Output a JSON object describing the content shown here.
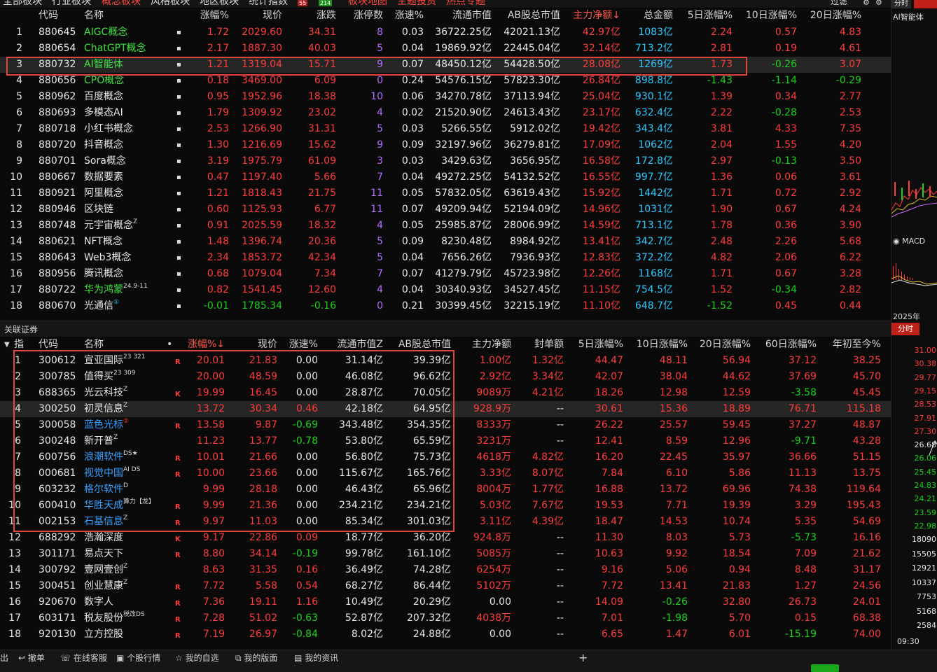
{
  "tabs": [
    {
      "label": "全部板块",
      "active": false
    },
    {
      "label": "行业板块",
      "active": false
    },
    {
      "label": "概念板块",
      "active": true
    },
    {
      "label": "风格板块",
      "active": false
    },
    {
      "label": "地区板块",
      "active": false
    },
    {
      "label": "统计指数",
      "active": false
    },
    {
      "label": "板块地图",
      "active": true
    },
    {
      "label": "主题投资",
      "active": true
    },
    {
      "label": "热点专题",
      "active": true
    }
  ],
  "tab_badges": {
    "up": "55",
    "down": "214"
  },
  "top_right": {
    "filter_label": "过滤",
    "minute_tab": "分时"
  },
  "top_headers": [
    "代码",
    "名称",
    "涨幅%",
    "现价",
    "涨跌",
    "涨停数",
    "涨速%",
    "流通市值",
    "AB股总市值",
    "主力净额↓",
    "总金额",
    "5日涨幅%",
    "10日涨幅%",
    "20日涨幅%"
  ],
  "top_rows": [
    {
      "n": "1",
      "code": "880645",
      "name": "AIGC概念",
      "sup": "",
      "pct": "1.72",
      "price": "2029.60",
      "chg": "34.31",
      "limit": "8",
      "speed": "0.03",
      "float": "36722.25亿",
      "total": "42021.13亿",
      "main": "42.97亿",
      "amount": "1083亿",
      "d5": "2.24",
      "d10": "0.57",
      "d20": "4.83"
    },
    {
      "n": "2",
      "code": "880654",
      "name": "ChatGPT概念",
      "sup": "",
      "pct": "2.17",
      "price": "1887.30",
      "chg": "40.03",
      "limit": "5",
      "speed": "0.04",
      "float": "19869.92亿",
      "total": "22445.04亿",
      "main": "32.14亿",
      "amount": "713.2亿",
      "d5": "2.81",
      "d10": "0.19",
      "d20": "4.61"
    },
    {
      "n": "3",
      "code": "880732",
      "name": "AI智能体",
      "sup": "",
      "pct": "1.21",
      "price": "1319.04",
      "chg": "15.71",
      "limit": "9",
      "speed": "0.07",
      "float": "48450.12亿",
      "total": "54428.50亿",
      "main": "28.08亿",
      "amount": "1269亿",
      "d5": "1.73",
      "d10": "-0.26",
      "d20": "3.07"
    },
    {
      "n": "4",
      "code": "880656",
      "name": "CPO概念",
      "sup": "",
      "pct": "0.18",
      "price": "3469.00",
      "chg": "6.09",
      "limit": "0",
      "speed": "0.24",
      "float": "54576.15亿",
      "total": "57823.30亿",
      "main": "26.84亿",
      "amount": "898.8亿",
      "d5": "-1.43",
      "d10": "-1.14",
      "d20": "-0.29"
    },
    {
      "n": "5",
      "code": "880962",
      "name": "百度概念",
      "sup": "",
      "pct": "0.95",
      "price": "1952.96",
      "chg": "18.38",
      "limit": "10",
      "speed": "0.06",
      "float": "34270.78亿",
      "total": "37113.94亿",
      "main": "25.04亿",
      "amount": "930.1亿",
      "d5": "1.39",
      "d10": "0.34",
      "d20": "2.77"
    },
    {
      "n": "6",
      "code": "880693",
      "name": "多模态AI",
      "sup": "",
      "pct": "1.79",
      "price": "1309.92",
      "chg": "23.02",
      "limit": "4",
      "speed": "0.02",
      "float": "21520.90亿",
      "total": "24613.43亿",
      "main": "23.17亿",
      "amount": "632.4亿",
      "d5": "2.22",
      "d10": "-0.28",
      "d20": "2.53"
    },
    {
      "n": "7",
      "code": "880718",
      "name": "小红书概念",
      "sup": "",
      "pct": "2.53",
      "price": "1266.90",
      "chg": "31.31",
      "limit": "5",
      "speed": "0.03",
      "float": "5266.55亿",
      "total": "5912.02亿",
      "main": "19.42亿",
      "amount": "343.4亿",
      "d5": "3.81",
      "d10": "4.33",
      "d20": "7.35"
    },
    {
      "n": "8",
      "code": "880720",
      "name": "抖音概念",
      "sup": "",
      "pct": "1.30",
      "price": "1216.69",
      "chg": "15.62",
      "limit": "9",
      "speed": "0.09",
      "float": "32197.96亿",
      "total": "36279.81亿",
      "main": "17.09亿",
      "amount": "1062亿",
      "d5": "2.04",
      "d10": "1.55",
      "d20": "4.20"
    },
    {
      "n": "9",
      "code": "880701",
      "name": "Sora概念",
      "sup": "",
      "pct": "3.19",
      "price": "1975.79",
      "chg": "61.09",
      "limit": "3",
      "speed": "0.03",
      "float": "3429.63亿",
      "total": "3656.95亿",
      "main": "16.58亿",
      "amount": "172.8亿",
      "d5": "2.97",
      "d10": "-0.13",
      "d20": "3.50"
    },
    {
      "n": "10",
      "code": "880667",
      "name": "数据要素",
      "sup": "",
      "pct": "0.47",
      "price": "1197.40",
      "chg": "5.66",
      "limit": "7",
      "speed": "0.04",
      "float": "49272.25亿",
      "total": "54132.52亿",
      "main": "16.55亿",
      "amount": "997.7亿",
      "d5": "1.36",
      "d10": "0.06",
      "d20": "3.61"
    },
    {
      "n": "11",
      "code": "880921",
      "name": "阿里概念",
      "sup": "",
      "pct": "1.21",
      "price": "1818.43",
      "chg": "21.75",
      "limit": "11",
      "speed": "0.05",
      "float": "57832.05亿",
      "total": "63619.43亿",
      "main": "15.92亿",
      "amount": "1442亿",
      "d5": "1.71",
      "d10": "0.72",
      "d20": "2.92"
    },
    {
      "n": "12",
      "code": "880946",
      "name": "区块链",
      "sup": "",
      "pct": "0.60",
      "price": "1125.93",
      "chg": "6.77",
      "limit": "11",
      "speed": "0.07",
      "float": "49209.94亿",
      "total": "52194.09亿",
      "main": "14.96亿",
      "amount": "1031亿",
      "d5": "1.90",
      "d10": "0.67",
      "d20": "4.24"
    },
    {
      "n": "13",
      "code": "880748",
      "name": "元宇宙概念",
      "sup": "Z",
      "pct": "0.91",
      "price": "2025.59",
      "chg": "18.32",
      "limit": "4",
      "speed": "0.05",
      "float": "25985.87亿",
      "total": "28006.99亿",
      "main": "14.59亿",
      "amount": "713.1亿",
      "d5": "1.78",
      "d10": "0.36",
      "d20": "3.90"
    },
    {
      "n": "14",
      "code": "880621",
      "name": "NFT概念",
      "sup": "",
      "pct": "1.48",
      "price": "1396.74",
      "chg": "20.36",
      "limit": "5",
      "speed": "0.09",
      "float": "8230.48亿",
      "total": "8984.92亿",
      "main": "13.41亿",
      "amount": "342.7亿",
      "d5": "2.48",
      "d10": "2.26",
      "d20": "5.68"
    },
    {
      "n": "15",
      "code": "880643",
      "name": "Web3概念",
      "sup": "",
      "pct": "2.34",
      "price": "1853.72",
      "chg": "42.34",
      "limit": "5",
      "speed": "0.04",
      "float": "7656.26亿",
      "total": "7936.93亿",
      "main": "12.83亿",
      "amount": "372.2亿",
      "d5": "4.82",
      "d10": "2.06",
      "d20": "6.22"
    },
    {
      "n": "16",
      "code": "880956",
      "name": "腾讯概念",
      "sup": "",
      "pct": "0.68",
      "price": "1079.04",
      "chg": "7.34",
      "limit": "7",
      "speed": "0.07",
      "float": "41279.79亿",
      "total": "45723.98亿",
      "main": "12.26亿",
      "amount": "1168亿",
      "d5": "1.71",
      "d10": "0.67",
      "d20": "3.28"
    },
    {
      "n": "17",
      "code": "880722",
      "name": "华为鸿蒙",
      "sup": "24.9-11",
      "pct": "0.82",
      "price": "1541.45",
      "chg": "12.60",
      "limit": "4",
      "speed": "0.04",
      "float": "30340.93亿",
      "total": "34527.45亿",
      "main": "11.15亿",
      "amount": "754.5亿",
      "d5": "1.52",
      "d10": "-0.34",
      "d20": "2.82"
    },
    {
      "n": "18",
      "code": "880670",
      "name": "光通信",
      "sup": "①",
      "pct": "-0.01",
      "price": "1785.34",
      "chg": "-0.16",
      "limit": "0",
      "speed": "0.21",
      "float": "30399.45亿",
      "total": "32215.19亿",
      "main": "11.10亿",
      "amount": "648.7亿",
      "d5": "-1.52",
      "d10": "0.45",
      "d20": "0.44"
    }
  ],
  "bottom_panel_title": "关联证券",
  "bottom_headers": [
    "指",
    "代码",
    "名称",
    "•",
    "涨幅%↓",
    "现价",
    "涨速%",
    "流通市值Z",
    "AB股总市值",
    "主力净额",
    "封单额",
    "5日涨幅%",
    "10日涨幅%",
    "20日涨幅%",
    "60日涨幅%",
    "年初至今%"
  ],
  "bottom_rows": [
    {
      "n": "1",
      "code": "300612",
      "name": "宣亚国际",
      "sup": "23 321",
      "mark": "R",
      "pct": "20.01",
      "price": "21.83",
      "speed": "0.00",
      "float": "31.14亿",
      "total": "39.39亿",
      "main": "1.00亿",
      "seal": "1.32亿",
      "d5": "44.47",
      "d10": "48.11",
      "d20": "56.94",
      "d60": "37.12",
      "ytd": "38.25"
    },
    {
      "n": "2",
      "code": "300785",
      "name": "值得买",
      "sup": "23 309",
      "mark": "",
      "pct": "20.00",
      "price": "48.59",
      "speed": "0.00",
      "float": "46.08亿",
      "total": "96.62亿",
      "main": "2.92亿",
      "seal": "3.34亿",
      "d5": "42.07",
      "d10": "38.04",
      "d20": "44.62",
      "d60": "37.69",
      "ytd": "45.70"
    },
    {
      "n": "3",
      "code": "688365",
      "name": "光云科技",
      "sup": "Z",
      "mark": "K",
      "pct": "19.99",
      "price": "16.45",
      "speed": "0.00",
      "float": "28.87亿",
      "total": "70.05亿",
      "main": "9089万",
      "seal": "4.21亿",
      "d5": "18.26",
      "d10": "12.98",
      "d20": "12.59",
      "d60": "-3.58",
      "ytd": "45.45"
    },
    {
      "n": "4",
      "code": "300250",
      "name": "初灵信息",
      "sup": "Z",
      "mark": "",
      "pct": "13.72",
      "price": "30.34",
      "speed": "0.46",
      "float": "42.18亿",
      "total": "64.95亿",
      "main": "928.9万",
      "seal": "--",
      "d5": "30.61",
      "d10": "15.36",
      "d20": "18.89",
      "d60": "76.71",
      "ytd": "115.18"
    },
    {
      "n": "5",
      "code": "300058",
      "name": "蓝色光标",
      "sup": "②",
      "mark": "R",
      "pct": "13.58",
      "price": "9.87",
      "speed": "-0.69",
      "float": "343.48亿",
      "total": "354.35亿",
      "main": "8333万",
      "seal": "--",
      "d5": "26.22",
      "d10": "25.57",
      "d20": "59.45",
      "d60": "37.27",
      "ytd": "48.87"
    },
    {
      "n": "6",
      "code": "300248",
      "name": "新开普",
      "sup": "Z",
      "mark": "",
      "pct": "11.23",
      "price": "13.77",
      "speed": "-0.78",
      "float": "53.80亿",
      "total": "65.59亿",
      "main": "3231万",
      "seal": "--",
      "d5": "12.41",
      "d10": "8.59",
      "d20": "12.96",
      "d60": "-9.71",
      "ytd": "43.28"
    },
    {
      "n": "7",
      "code": "600756",
      "name": "浪潮软件",
      "sup": "DS★",
      "mark": "R",
      "pct": "10.01",
      "price": "21.66",
      "speed": "0.00",
      "float": "56.80亿",
      "total": "75.73亿",
      "main": "4618万",
      "seal": "4.82亿",
      "d5": "16.20",
      "d10": "22.45",
      "d20": "35.97",
      "d60": "36.66",
      "ytd": "51.15"
    },
    {
      "n": "8",
      "code": "000681",
      "name": "视觉中国",
      "sup": "AI DS",
      "mark": "R",
      "pct": "10.00",
      "price": "23.66",
      "speed": "0.00",
      "float": "115.67亿",
      "total": "165.76亿",
      "main": "3.33亿",
      "seal": "8.07亿",
      "d5": "7.84",
      "d10": "6.10",
      "d20": "5.86",
      "d60": "11.13",
      "ytd": "13.75"
    },
    {
      "n": "9",
      "code": "603232",
      "name": "格尔软件",
      "sup": "D",
      "mark": "",
      "pct": "9.99",
      "price": "28.18",
      "speed": "0.00",
      "float": "46.43亿",
      "total": "65.96亿",
      "main": "8004万",
      "seal": "1.77亿",
      "d5": "16.88",
      "d10": "13.72",
      "d20": "69.96",
      "d60": "74.38",
      "ytd": "119.64"
    },
    {
      "n": "10",
      "code": "600410",
      "name": "华胜天成",
      "sup": "算力【龙】",
      "mark": "R",
      "pct": "9.99",
      "price": "21.36",
      "speed": "0.00",
      "float": "234.21亿",
      "total": "234.21亿",
      "main": "5.03亿",
      "seal": "7.67亿",
      "d5": "19.53",
      "d10": "7.71",
      "d20": "19.39",
      "d60": "3.29",
      "ytd": "195.43"
    },
    {
      "n": "11",
      "code": "002153",
      "name": "石基信息",
      "sup": "Z",
      "mark": "R",
      "pct": "9.97",
      "price": "11.03",
      "speed": "0.00",
      "float": "85.34亿",
      "total": "301.03亿",
      "main": "3.11亿",
      "seal": "4.39亿",
      "d5": "18.47",
      "d10": "14.53",
      "d20": "10.74",
      "d60": "5.35",
      "ytd": "54.69"
    },
    {
      "n": "12",
      "code": "688292",
      "name": "浩瀚深度",
      "sup": "",
      "mark": "K",
      "pct": "9.17",
      "price": "22.86",
      "speed": "0.09",
      "float": "18.77亿",
      "total": "36.20亿",
      "main": "924.8万",
      "seal": "--",
      "d5": "11.30",
      "d10": "8.03",
      "d20": "5.73",
      "d60": "-5.73",
      "ytd": "16.16"
    },
    {
      "n": "13",
      "code": "301171",
      "name": "易点天下",
      "sup": "",
      "mark": "R",
      "pct": "8.80",
      "price": "34.14",
      "speed": "-0.19",
      "float": "99.78亿",
      "total": "161.10亿",
      "main": "5085万",
      "seal": "--",
      "d5": "10.63",
      "d10": "9.92",
      "d20": "18.54",
      "d60": "7.09",
      "ytd": "21.62"
    },
    {
      "n": "14",
      "code": "300792",
      "name": "壹网壹创",
      "sup": "Z",
      "mark": "",
      "pct": "8.63",
      "price": "31.35",
      "speed": "0.16",
      "float": "36.49亿",
      "total": "74.28亿",
      "main": "6254万",
      "seal": "--",
      "d5": "9.16",
      "d10": "5.06",
      "d20": "0.94",
      "d60": "8.48",
      "ytd": "31.17"
    },
    {
      "n": "15",
      "code": "300451",
      "name": "创业慧康",
      "sup": "Z",
      "mark": "R",
      "pct": "7.72",
      "price": "5.58",
      "speed": "0.54",
      "float": "68.27亿",
      "total": "86.44亿",
      "main": "5102万",
      "seal": "--",
      "d5": "7.72",
      "d10": "13.41",
      "d20": "21.83",
      "d60": "1.27",
      "ytd": "24.56"
    },
    {
      "n": "16",
      "code": "920670",
      "name": "数字人",
      "sup": "",
      "mark": "R",
      "pct": "7.36",
      "price": "19.11",
      "speed": "1.16",
      "float": "10.49亿",
      "total": "20.29亿",
      "main": "0.00",
      "seal": "--",
      "d5": "14.09",
      "d10": "-0.26",
      "d20": "32.80",
      "d60": "26.73",
      "ytd": "24.01"
    },
    {
      "n": "17",
      "code": "603171",
      "name": "税友股份",
      "sup": "税改DS",
      "mark": "R",
      "pct": "7.28",
      "price": "51.02",
      "speed": "-0.63",
      "float": "52.87亿",
      "total": "207.32亿",
      "main": "4038万",
      "seal": "--",
      "d5": "7.01",
      "d10": "-1.98",
      "d20": "5.70",
      "d60": "0.15",
      "ytd": "68.38"
    },
    {
      "n": "18",
      "code": "920130",
      "name": "立方控股",
      "sup": "",
      "mark": "R",
      "pct": "7.19",
      "price": "26.97",
      "speed": "-0.84",
      "float": "8.02亿",
      "total": "24.88亿",
      "main": "0.00",
      "seal": "--",
      "d5": "6.65",
      "d10": "1.47",
      "d20": "6.01",
      "d60": "-15.19",
      "ytd": "74.00"
    }
  ],
  "right_panel": {
    "top_title": "AI智能体",
    "macd_label": "MACD",
    "year_label": "2025年",
    "minute_tab": "分时",
    "price_axis": [
      "31.00",
      "30.38",
      "29.77",
      "29.15",
      "28.53",
      "27.91",
      "27.30",
      "26.68",
      "26.06",
      "25.45",
      "24.83",
      "24.21",
      "23.59",
      "22.98"
    ],
    "volume_axis": [
      "18090",
      "15505",
      "12921",
      "10337",
      "7753",
      "5168",
      "2584"
    ],
    "time_label": "09:30"
  },
  "statusbar": [
    "出",
    "撤单",
    "在线客服",
    "个股行情",
    "我的自选",
    "我的版面",
    "我的资讯"
  ],
  "colors": {
    "up": "#ff3c3c",
    "down": "#19d219",
    "highlight_box": "#e2463f"
  }
}
